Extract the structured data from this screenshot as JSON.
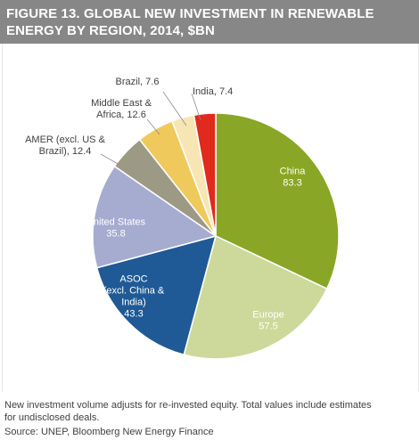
{
  "title": "FIGURE 13. GLOBAL NEW INVESTMENT IN RENEWABLE ENERGY BY REGION, 2014, $BN",
  "notes": {
    "line1": "New investment volume adjusts for re-invested equity. Total values include estimates",
    "line2": "for undisclosed deals.",
    "source": "Source: UNEP, Bloomberg New Energy Finance"
  },
  "colors": {
    "title_bg": "#878787",
    "title_text": "#ffffff",
    "slice_border": "#ffffff",
    "label_dark": "#404040",
    "label_light": "#ffffff"
  },
  "chart_data": {
    "type": "pie",
    "title": "FIGURE 13. GLOBAL NEW INVESTMENT IN RENEWABLE ENERGY BY REGION, 2014, $BN",
    "unit": "$BN",
    "start_angle_deg": 0,
    "direction": "clockwise",
    "slices": [
      {
        "name": "China",
        "value": 83.3,
        "color": "#8aa626",
        "label_inside": true,
        "label_lines": [
          "China",
          "83.3"
        ]
      },
      {
        "name": "Europe",
        "value": 57.5,
        "color": "#cdd99a",
        "label_inside": true,
        "label_lines": [
          "Europe",
          "57.5"
        ]
      },
      {
        "name": "ASOC (excl. China & India)",
        "value": 43.3,
        "color": "#1f5a96",
        "label_inside": true,
        "label_lines": [
          "ASOC",
          "(excl. China &",
          "India)",
          "43.3"
        ]
      },
      {
        "name": "United States",
        "value": 35.8,
        "color": "#a6acd0",
        "label_inside": true,
        "label_lines": [
          "United States",
          "35.8"
        ]
      },
      {
        "name": "AMER (excl. US & Brazil)",
        "value": 12.4,
        "color": "#9c9a85",
        "label_inside": false,
        "label_lines": [
          "AMER (excl. US &",
          "Brazil), 12.4"
        ]
      },
      {
        "name": "Middle East & Africa",
        "value": 12.6,
        "color": "#efc95c",
        "label_inside": false,
        "label_lines": [
          "Middle East &",
          "Africa, 12.6"
        ]
      },
      {
        "name": "Brazil",
        "value": 7.6,
        "color": "#f7e6b3",
        "label_inside": false,
        "label_lines": [
          "Brazil, 7.6"
        ]
      },
      {
        "name": "India",
        "value": 7.4,
        "color": "#e02a1d",
        "label_inside": false,
        "label_lines": [
          "India, 7.4"
        ]
      }
    ]
  }
}
